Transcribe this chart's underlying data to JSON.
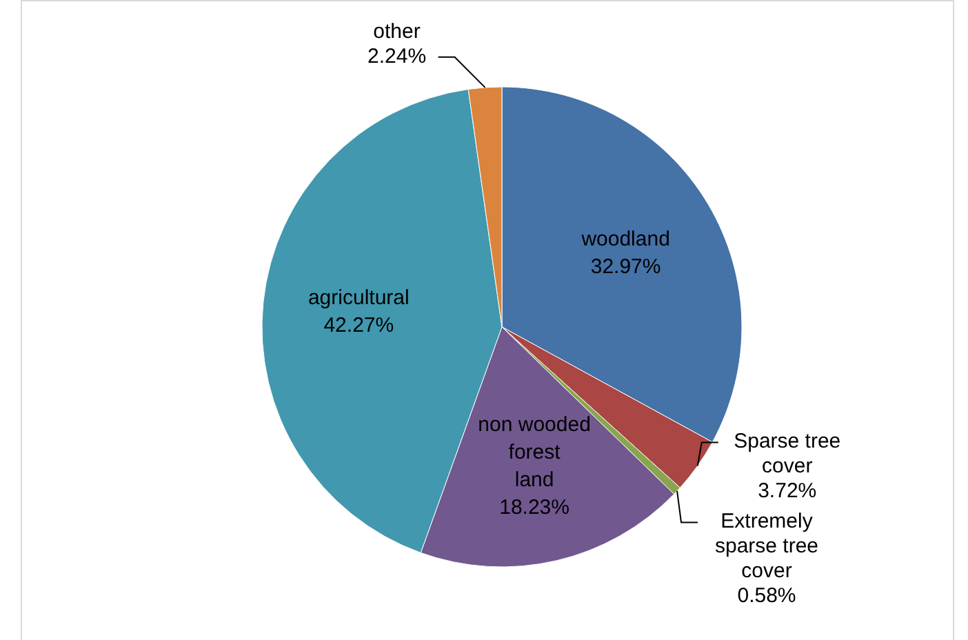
{
  "chart_data": {
    "type": "pie",
    "categories": [
      "woodland",
      "Sparse tree cover",
      "Extremely sparse tree cover",
      "non wooded forest land",
      "agricultural",
      "other"
    ],
    "values": [
      32.97,
      3.72,
      0.58,
      18.23,
      42.27,
      2.24
    ],
    "value_labels": [
      "32.97%",
      "3.72%",
      "0.58%",
      "18.23%",
      "42.27%",
      "2.24%"
    ],
    "colors": [
      "#4572a7",
      "#aa4643",
      "#89a54e",
      "#71588f",
      "#4198af",
      "#db843d"
    ]
  }
}
